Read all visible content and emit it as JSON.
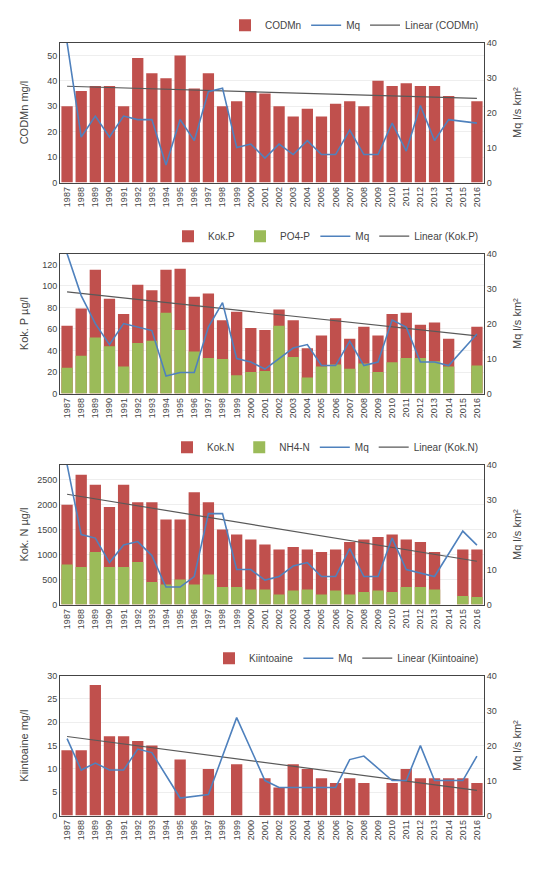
{
  "chart_data": [
    {
      "type": "bar",
      "categories": [
        "1987",
        "1988",
        "1989",
        "1990",
        "1991",
        "1992",
        "1993",
        "1994",
        "1995",
        "1996",
        "1997",
        "1998",
        "1999",
        "2000",
        "2001",
        "2002",
        "2003",
        "2004",
        "2005",
        "2006",
        "2007",
        "2008",
        "2009",
        "2010",
        "2011",
        "2012",
        "2013",
        "2014",
        "2015",
        "2016"
      ],
      "series": [
        {
          "name": "CODMn",
          "type": "bar",
          "color": "#C0504D",
          "values": [
            30,
            36,
            38,
            38,
            30,
            49,
            43,
            41,
            50,
            37,
            43,
            30,
            32,
            36,
            35,
            30,
            26,
            29,
            26,
            31,
            32,
            30,
            40,
            38,
            39,
            38,
            38,
            34,
            null,
            32
          ]
        },
        {
          "name": "Mq",
          "type": "line",
          "color": "#4F81BD",
          "axis": "y2",
          "values": [
            40,
            13,
            19,
            13,
            19,
            18,
            18,
            5,
            18,
            12,
            26,
            27,
            10,
            11,
            7,
            11,
            8,
            12,
            8,
            8,
            15,
            8,
            8,
            17,
            9,
            22,
            12,
            18,
            null,
            17
          ]
        },
        {
          "name": "Linear (CODMn)",
          "type": "line",
          "color": "#595959",
          "values": [
            37.86,
            null,
            null,
            null,
            null,
            null,
            null,
            null,
            null,
            null,
            null,
            null,
            null,
            null,
            null,
            null,
            null,
            null,
            null,
            null,
            null,
            null,
            null,
            null,
            null,
            null,
            null,
            null,
            null,
            33.09
          ]
        }
      ],
      "ylabel": "CODMn mg/l",
      "y2label": "Mq l/s km²",
      "ylim": [
        0,
        55
      ],
      "yticks": [
        0,
        10,
        20,
        30,
        40,
        50
      ],
      "y2lim": [
        0,
        40
      ],
      "y2ticks": [
        0,
        10,
        20,
        30,
        40
      ],
      "grid": true,
      "legend": "upper right"
    },
    {
      "type": "bar",
      "categories": [
        "1987",
        "1988",
        "1989",
        "1990",
        "1991",
        "1992",
        "1993",
        "1994",
        "1995",
        "1996",
        "1997",
        "1998",
        "1999",
        "2000",
        "2001",
        "2002",
        "2003",
        "2004",
        "2005",
        "2006",
        "2007",
        "2008",
        "2009",
        "2010",
        "2011",
        "2012",
        "2013",
        "2014",
        "2015",
        "2016"
      ],
      "series": [
        {
          "name": "Kok.P",
          "type": "bar",
          "color": "#C0504D",
          "values": [
            63,
            79,
            115,
            88,
            74,
            101,
            96,
            115,
            116,
            90,
            93,
            68,
            76,
            61,
            59,
            78,
            68,
            42,
            54,
            70,
            51,
            62,
            54,
            74,
            75,
            64,
            66,
            51,
            null,
            62
          ]
        },
        {
          "name": "PO4-P",
          "type": "bar",
          "color": "#9BBB59",
          "values": [
            24,
            35,
            52,
            44,
            25,
            47,
            49,
            75,
            59,
            39,
            33,
            32,
            17,
            20,
            21,
            63,
            34,
            15,
            25,
            27,
            23,
            28,
            20,
            29,
            33,
            33,
            30,
            25,
            null,
            26
          ]
        },
        {
          "name": "Mq",
          "type": "line",
          "color": "#4F81BD",
          "axis": "y2",
          "values": [
            40,
            28,
            20,
            14,
            20,
            19,
            18,
            5,
            6,
            6,
            19,
            26,
            10,
            9,
            7,
            10,
            13,
            14,
            8,
            8,
            15,
            8,
            9,
            21,
            19,
            9,
            9,
            8,
            null,
            17
          ]
        },
        {
          "name": "Linear (Kok.P)",
          "type": "line",
          "color": "#595959",
          "values": [
            94.46,
            null,
            null,
            null,
            null,
            null,
            null,
            null,
            null,
            null,
            null,
            null,
            null,
            null,
            null,
            null,
            null,
            null,
            null,
            null,
            null,
            null,
            null,
            null,
            null,
            null,
            null,
            null,
            null,
            53.54
          ]
        }
      ],
      "ylabel": "Kok. P µg/l",
      "y2label": "Mq l/s km²",
      "ylim": [
        0,
        130
      ],
      "yticks": [
        0,
        20,
        40,
        60,
        80,
        100,
        120
      ],
      "y2lim": [
        0,
        40
      ],
      "y2ticks": [
        0,
        10,
        20,
        30,
        40
      ],
      "grid": true,
      "legend": "upper right"
    },
    {
      "type": "bar",
      "categories": [
        "1987",
        "1988",
        "1989",
        "1990",
        "1991",
        "1992",
        "1993",
        "1994",
        "1995",
        "1996",
        "1997",
        "1998",
        "1999",
        "2000",
        "2001",
        "2002",
        "2003",
        "2004",
        "2005",
        "2006",
        "2007",
        "2008",
        "2009",
        "2010",
        "2011",
        "2012",
        "2013",
        "2014",
        "2015",
        "2016"
      ],
      "series": [
        {
          "name": "Kok.N",
          "type": "bar",
          "color": "#C0504D",
          "values": [
            2000,
            2600,
            2400,
            1950,
            2400,
            2050,
            2050,
            1700,
            1700,
            2250,
            2050,
            1500,
            1400,
            1300,
            1200,
            1100,
            1150,
            1100,
            1050,
            1100,
            1250,
            1300,
            1350,
            1400,
            1300,
            1250,
            1050,
            null,
            1100,
            1100
          ]
        },
        {
          "name": "NH4-N",
          "type": "bar",
          "color": "#9BBB59",
          "values": [
            800,
            750,
            1050,
            750,
            750,
            850,
            450,
            400,
            500,
            400,
            600,
            350,
            350,
            300,
            300,
            200,
            280,
            300,
            200,
            280,
            200,
            250,
            280,
            250,
            350,
            350,
            300,
            null,
            170,
            150
          ]
        },
        {
          "name": "Mq",
          "type": "line",
          "color": "#4F81BD",
          "axis": "y2",
          "values": [
            40,
            20,
            19,
            12,
            17,
            18,
            14,
            5,
            5,
            8,
            26,
            26,
            10,
            10,
            7,
            8,
            11,
            12,
            8,
            8,
            16,
            8,
            8,
            19,
            10,
            9,
            8,
            null,
            21,
            17
          ]
        },
        {
          "name": "Linear (Kok.N)",
          "type": "line",
          "color": "#595959",
          "values": [
            2207.87,
            null,
            null,
            null,
            null,
            null,
            null,
            null,
            null,
            null,
            null,
            null,
            null,
            null,
            null,
            null,
            null,
            null,
            null,
            null,
            null,
            null,
            null,
            null,
            null,
            null,
            null,
            null,
            null,
            866.03
          ]
        }
      ],
      "ylabel": "Kok. N µg/l",
      "y2label": "Mq l/s km²",
      "ylim": [
        0,
        2800
      ],
      "yticks": [
        0,
        500,
        1000,
        1500,
        2000,
        2500
      ],
      "y2lim": [
        0,
        40
      ],
      "y2ticks": [
        0,
        10,
        20,
        30,
        40
      ],
      "grid": true,
      "legend": "upper right"
    },
    {
      "type": "bar",
      "categories": [
        "1987",
        "1988",
        "1989",
        "1990",
        "1991",
        "1992",
        "1993",
        "1994",
        "1995",
        "1996",
        "1997",
        "1998",
        "1999",
        "2000",
        "2001",
        "2002",
        "2003",
        "2004",
        "2005",
        "2006",
        "2007",
        "2008",
        "2009",
        "2010",
        "2011",
        "2012",
        "2013",
        "2014",
        "2015",
        "2016"
      ],
      "series": [
        {
          "name": "Kiintoaine",
          "type": "bar",
          "color": "#C0504D",
          "values": [
            14,
            14,
            28,
            17,
            17,
            16,
            15,
            null,
            12,
            null,
            10,
            null,
            11,
            null,
            8,
            6,
            11,
            10,
            8,
            7,
            8,
            7,
            null,
            7,
            10,
            8,
            8,
            8,
            8,
            7
          ]
        },
        {
          "name": "Mq",
          "type": "line",
          "color": "#4F81BD",
          "axis": "y2",
          "values": [
            22,
            13,
            15,
            13,
            13,
            19,
            18,
            null,
            5,
            null,
            6,
            null,
            28,
            null,
            10,
            8,
            8,
            8,
            8,
            8,
            16,
            17,
            null,
            10,
            10,
            20,
            10,
            10,
            10,
            17
          ]
        },
        {
          "name": "Linear (Kiintoaine)",
          "type": "line",
          "color": "#595959",
          "values": [
            16.95,
            null,
            null,
            null,
            null,
            null,
            null,
            null,
            null,
            null,
            null,
            null,
            null,
            null,
            null,
            null,
            null,
            null,
            null,
            null,
            null,
            null,
            null,
            null,
            null,
            null,
            null,
            null,
            null,
            5.38
          ]
        }
      ],
      "ylabel": "Kiintoaine mg/l",
      "y2label": "Mq l/s km²",
      "ylim": [
        0,
        30
      ],
      "yticks": [
        0,
        5,
        10,
        15,
        20,
        25,
        30
      ],
      "y2lim": [
        0,
        40
      ],
      "y2ticks": [
        0,
        10,
        20,
        30,
        40
      ],
      "grid": true,
      "legend": "upper right"
    }
  ]
}
